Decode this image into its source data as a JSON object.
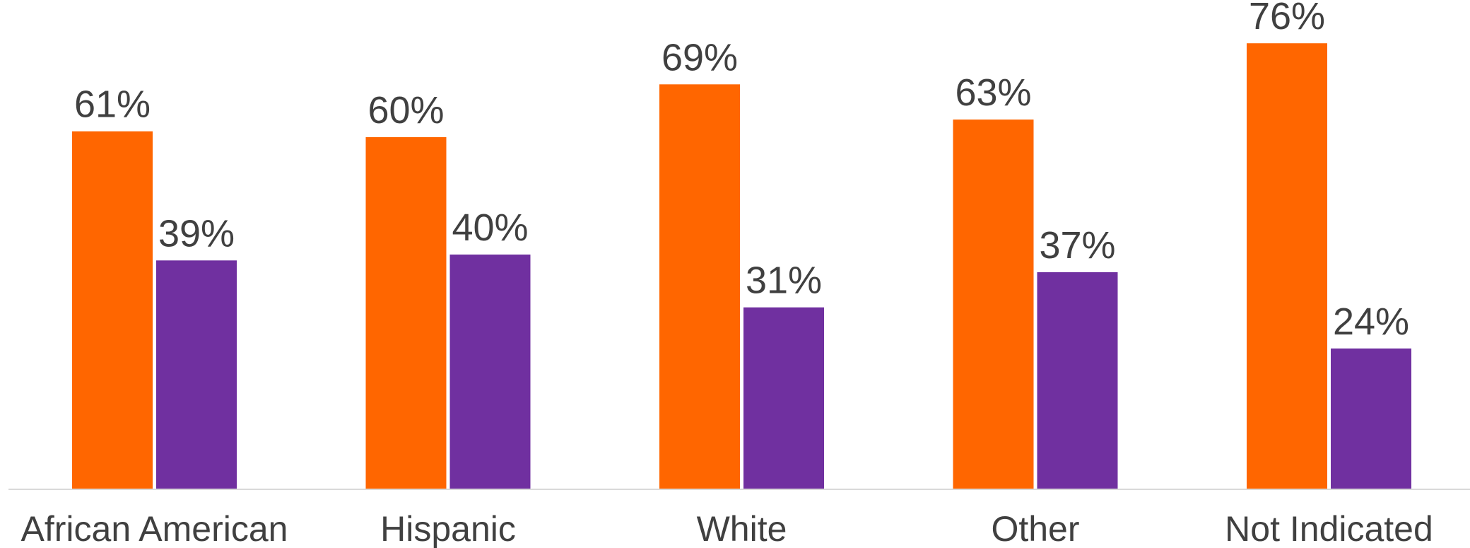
{
  "chart_data": {
    "type": "bar",
    "categories": [
      "African American",
      "Hispanic",
      "White",
      "Other",
      "Not Indicated"
    ],
    "series": [
      {
        "values": [
          61,
          60,
          69,
          63,
          76
        ],
        "color": "#FF6600"
      },
      {
        "values": [
          39,
          40,
          31,
          37,
          24
        ],
        "color": "#7030A0"
      }
    ],
    "data_labels": [
      [
        "61%",
        "60%",
        "69%",
        "63%",
        "76%"
      ],
      [
        "39%",
        "40%",
        "31%",
        "37%",
        "24%"
      ]
    ],
    "ylim": [
      0,
      100
    ],
    "grid": false,
    "legend": "none",
    "axis_line_color": "#D9D9D9"
  }
}
